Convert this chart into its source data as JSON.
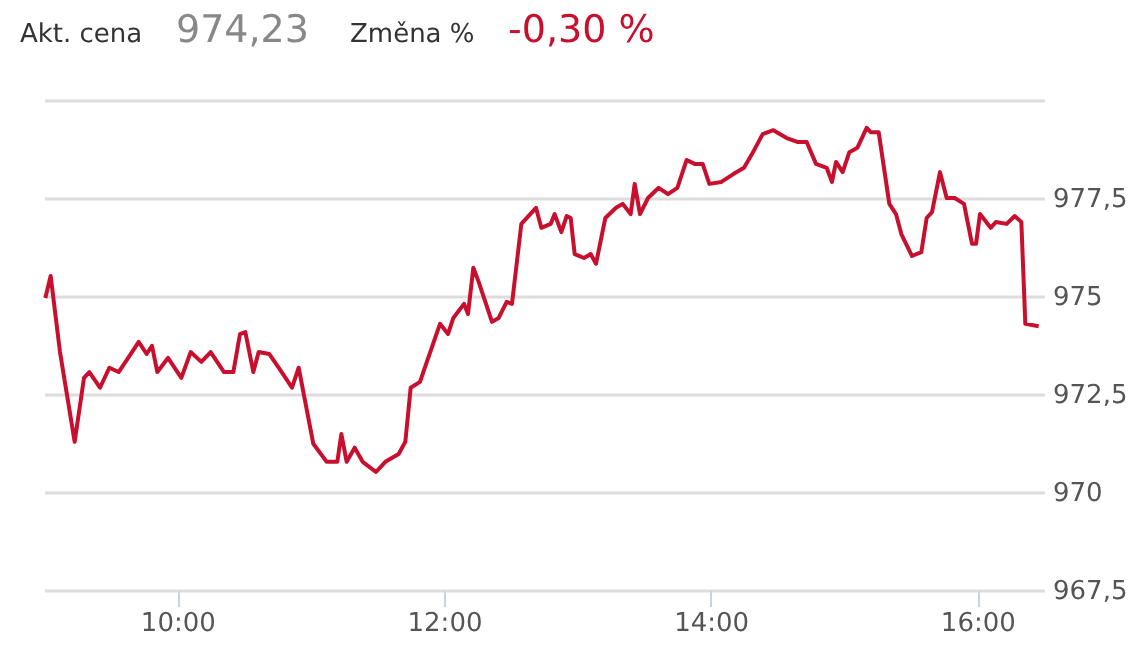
{
  "chart_data": {
    "type": "line",
    "annotations": [
      "Akt. cena",
      "974,23",
      "Změna %",
      "-0,30 %"
    ],
    "x": [
      9.01,
      9.05,
      9.12,
      9.23,
      9.3,
      9.34,
      9.42,
      9.49,
      9.56,
      9.66,
      9.71,
      9.77,
      9.81,
      9.85,
      9.93,
      10.03,
      10.1,
      10.18,
      10.25,
      10.35,
      10.42,
      10.47,
      10.51,
      10.57,
      10.61,
      10.69,
      10.76,
      10.86,
      10.91,
      11.02,
      11.12,
      11.2,
      11.23,
      11.27,
      11.33,
      11.39,
      11.49,
      11.56,
      11.66,
      11.71,
      11.75,
      11.82,
      11.85,
      11.97,
      12.03,
      12.07,
      12.15,
      12.18,
      12.22,
      12.26,
      12.36,
      12.41,
      12.47,
      12.51,
      12.58,
      12.69,
      12.73,
      12.8,
      12.83,
      12.88,
      12.92,
      12.95,
      12.98,
      13.05,
      13.1,
      13.14,
      13.21,
      13.29,
      13.34,
      13.4,
      13.43,
      13.47,
      13.53,
      13.61,
      13.68,
      13.75,
      13.82,
      13.88,
      13.94,
      13.99,
      14.08,
      14.17,
      14.25,
      14.31,
      14.39,
      14.47,
      14.57,
      14.65,
      14.72,
      14.79,
      14.87,
      14.91,
      14.94,
      14.99,
      15.04,
      15.1,
      15.17,
      15.2,
      15.26,
      15.34,
      15.39,
      15.43,
      15.51,
      15.58,
      15.62,
      15.66,
      15.72,
      15.77,
      15.83,
      15.9,
      15.96,
      15.99,
      16.02,
      16.1,
      16.14,
      16.22,
      16.28,
      16.33,
      16.36,
      16.46
    ],
    "series": [
      {
        "color": "#c8102e",
        "values": [
          974.95,
          975.51,
          973.57,
          971.28,
          972.91,
          973.06,
          972.66,
          973.17,
          973.06,
          973.57,
          973.83,
          973.52,
          973.73,
          973.06,
          973.42,
          972.91,
          973.57,
          973.32,
          973.57,
          973.06,
          973.06,
          974.03,
          974.08,
          973.06,
          973.57,
          973.52,
          973.17,
          972.66,
          973.17,
          971.23,
          970.77,
          970.77,
          971.48,
          970.77,
          971.13,
          970.77,
          970.51,
          970.77,
          970.97,
          971.28,
          972.66,
          972.81,
          973.11,
          974.29,
          974.03,
          974.44,
          974.8,
          974.54,
          975.72,
          975.36,
          974.34,
          974.44,
          974.85,
          974.8,
          976.84,
          977.25,
          976.74,
          976.84,
          977.09,
          976.63,
          977.04,
          976.99,
          976.07,
          975.97,
          976.07,
          975.82,
          976.99,
          977.25,
          977.35,
          977.09,
          977.86,
          977.09,
          977.5,
          977.76,
          977.6,
          977.76,
          978.47,
          978.37,
          978.37,
          977.86,
          977.91,
          978.11,
          978.27,
          978.62,
          979.13,
          979.23,
          979.03,
          978.93,
          978.93,
          978.37,
          978.27,
          977.91,
          978.42,
          978.16,
          978.67,
          978.78,
          979.29,
          979.18,
          979.18,
          977.35,
          977.09,
          976.58,
          976.02,
          976.12,
          976.99,
          977.14,
          978.16,
          977.5,
          977.5,
          977.35,
          976.33,
          976.33,
          977.09,
          976.74,
          976.89,
          976.84,
          977.04,
          976.89,
          974.29,
          974.23
        ]
      }
    ],
    "xlim": [
      9,
      16.5
    ],
    "xticks": [
      {
        "value": 10,
        "label": "10:00"
      },
      {
        "value": 12,
        "label": "12:00"
      },
      {
        "value": 14,
        "label": "14:00"
      },
      {
        "value": 16,
        "label": "16:00"
      }
    ],
    "ylim": [
      967.5,
      980
    ],
    "yticks": [
      {
        "value": 967.5,
        "label": "967,5"
      },
      {
        "value": 970,
        "label": "970"
      },
      {
        "value": 972.5,
        "label": "972,5"
      },
      {
        "value": 975,
        "label": "975"
      },
      {
        "value": 977.5,
        "label": "977,5"
      },
      {
        "value": 980,
        "label": null
      }
    ],
    "grid": "y",
    "marker": "none",
    "line_style": "solid"
  }
}
